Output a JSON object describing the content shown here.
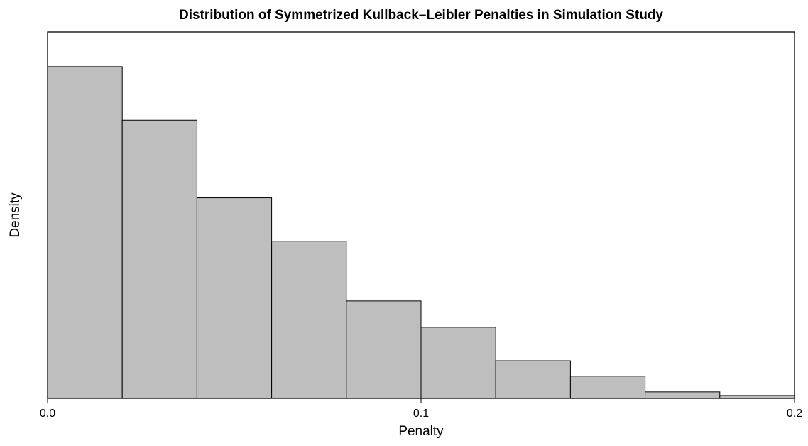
{
  "chart_data": {
    "type": "histogram",
    "title": "Distribution of Symmetrized Kullback–Leibler Penalties in Simulation Study",
    "xlabel": "Penalty",
    "ylabel": "Density",
    "bins": [
      0,
      0.02,
      0.04,
      0.06,
      0.08,
      0.1,
      0.12,
      0.14,
      0.16,
      0.18,
      0.2
    ],
    "values": [
      13.76,
      11.54,
      8.32,
      6.52,
      4.04,
      2.95,
      1.56,
      0.92,
      0.27,
      0.12
    ],
    "color": "#bebebe",
    "xlim": [
      0,
      0.2
    ],
    "xticks": [
      {
        "value": 0,
        "label": "0.0"
      },
      0.1,
      0.2
    ],
    "ylim": [
      0,
      15.2
    ]
  }
}
